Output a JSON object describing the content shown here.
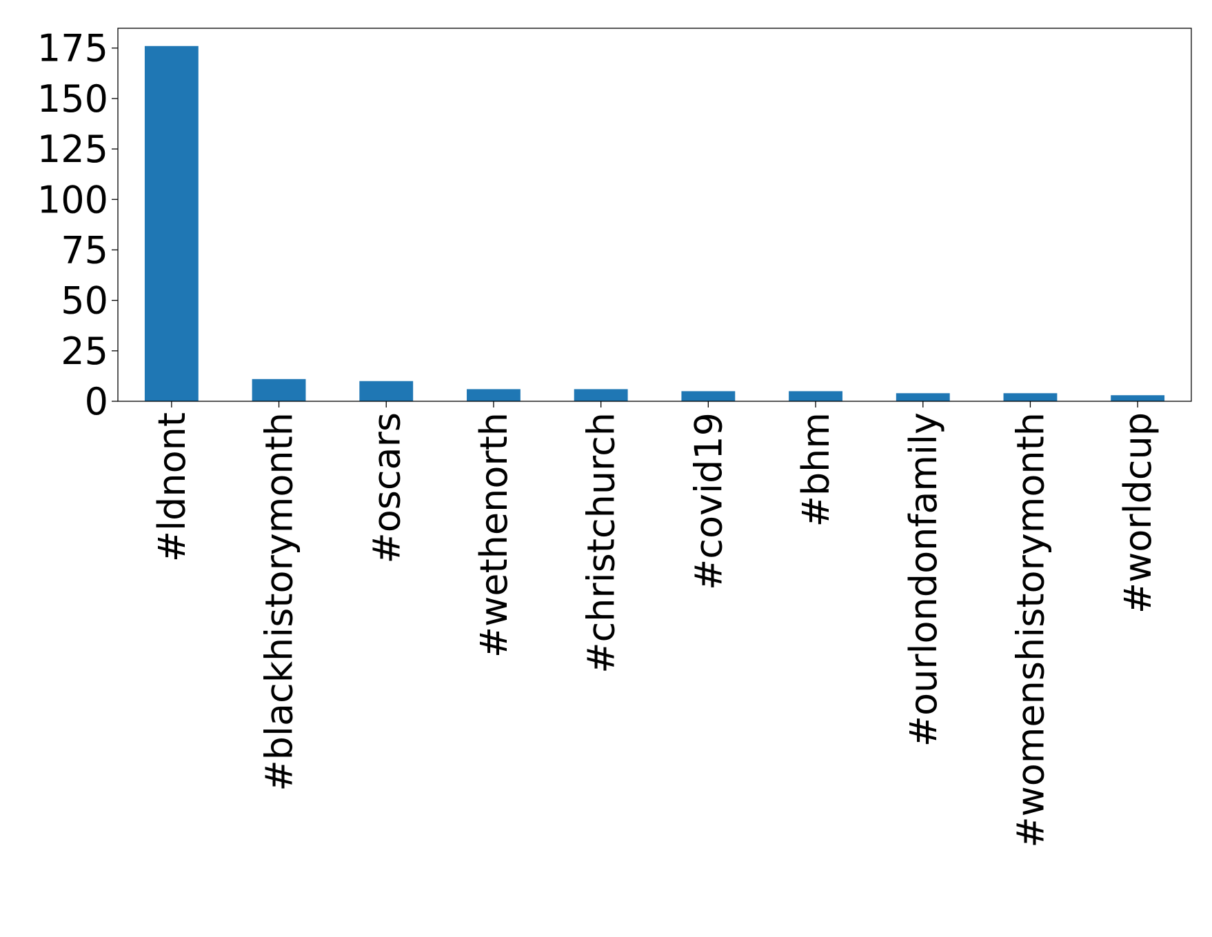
{
  "chart_data": {
    "type": "bar",
    "categories": [
      "#ldnont",
      "#blackhistorymonth",
      "#oscars",
      "#wethenorth",
      "#christchurch",
      "#covid19",
      "#bhm",
      "#ourlondonfamily",
      "#womenshistorymonth",
      "#worldcup"
    ],
    "values": [
      176,
      11,
      10,
      6,
      6,
      5,
      5,
      4,
      4,
      3
    ],
    "color": "#1f77b4",
    "ylim": [
      0,
      184.8
    ],
    "yticks": [
      0,
      25,
      50,
      75,
      100,
      125,
      150,
      175
    ],
    "grid": false
  }
}
